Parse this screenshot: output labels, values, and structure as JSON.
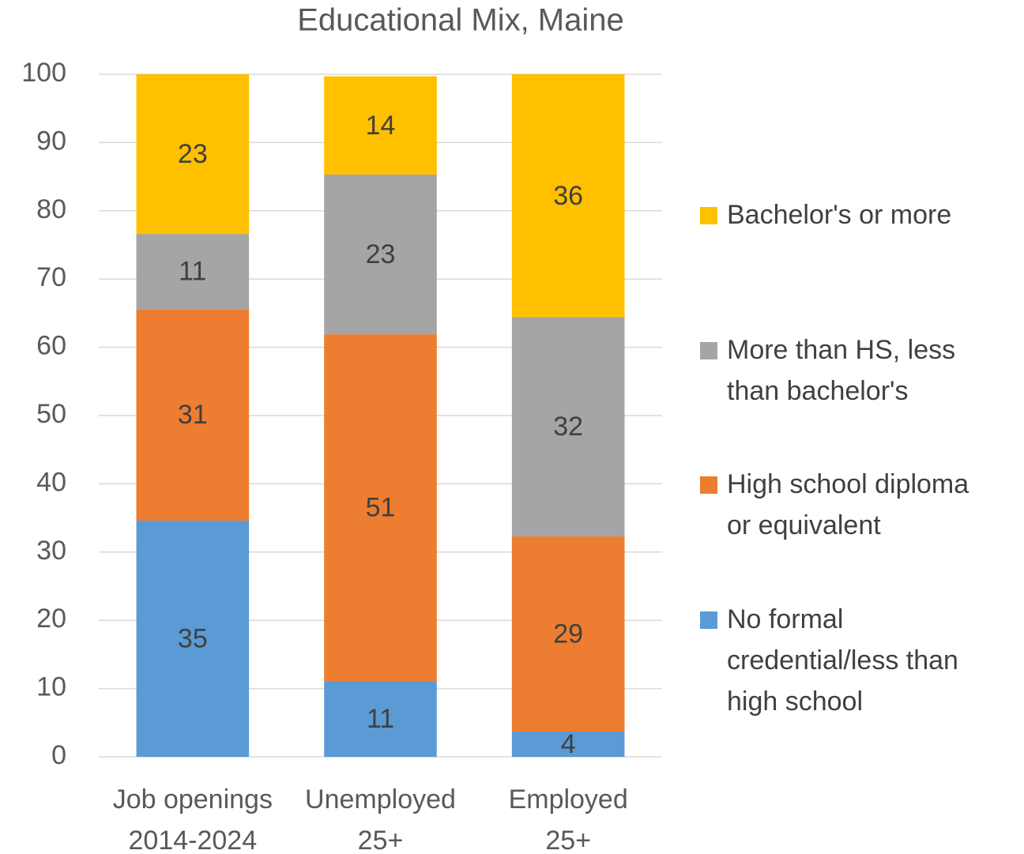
{
  "chart_data": {
    "type": "stacked_bar",
    "title": "Educational Mix, Maine",
    "categories": [
      [
        "Job openings",
        "2014-2024"
      ],
      [
        "Unemployed",
        "25+"
      ],
      [
        "Employed",
        "25+"
      ]
    ],
    "series": [
      {
        "name": "No formal credential/less than high school",
        "color": "#5b9bd5",
        "values": [
          34.6,
          11.1,
          3.7
        ],
        "value_labels": [
          "35",
          "11",
          "4"
        ]
      },
      {
        "name": "High school diploma or equivalent",
        "color": "#ed7d31",
        "values": [
          31.0,
          50.8,
          28.6
        ],
        "value_labels": [
          "31",
          "51",
          "29"
        ]
      },
      {
        "name": "More than HS, less than bachelor's",
        "color": "#a5a5a5",
        "values": [
          11.0,
          23.4,
          32.1
        ],
        "value_labels": [
          "11",
          "23",
          "32"
        ]
      },
      {
        "name": "Bachelor's or more",
        "color": "#ffc000",
        "values": [
          23.4,
          14.4,
          35.6
        ],
        "value_labels": [
          "23",
          "14",
          "36"
        ]
      }
    ],
    "ylim": [
      0,
      100
    ],
    "yticks": [
      0,
      10,
      20,
      30,
      40,
      50,
      60,
      70,
      80,
      90,
      100
    ],
    "grid": true,
    "legend": "right"
  }
}
